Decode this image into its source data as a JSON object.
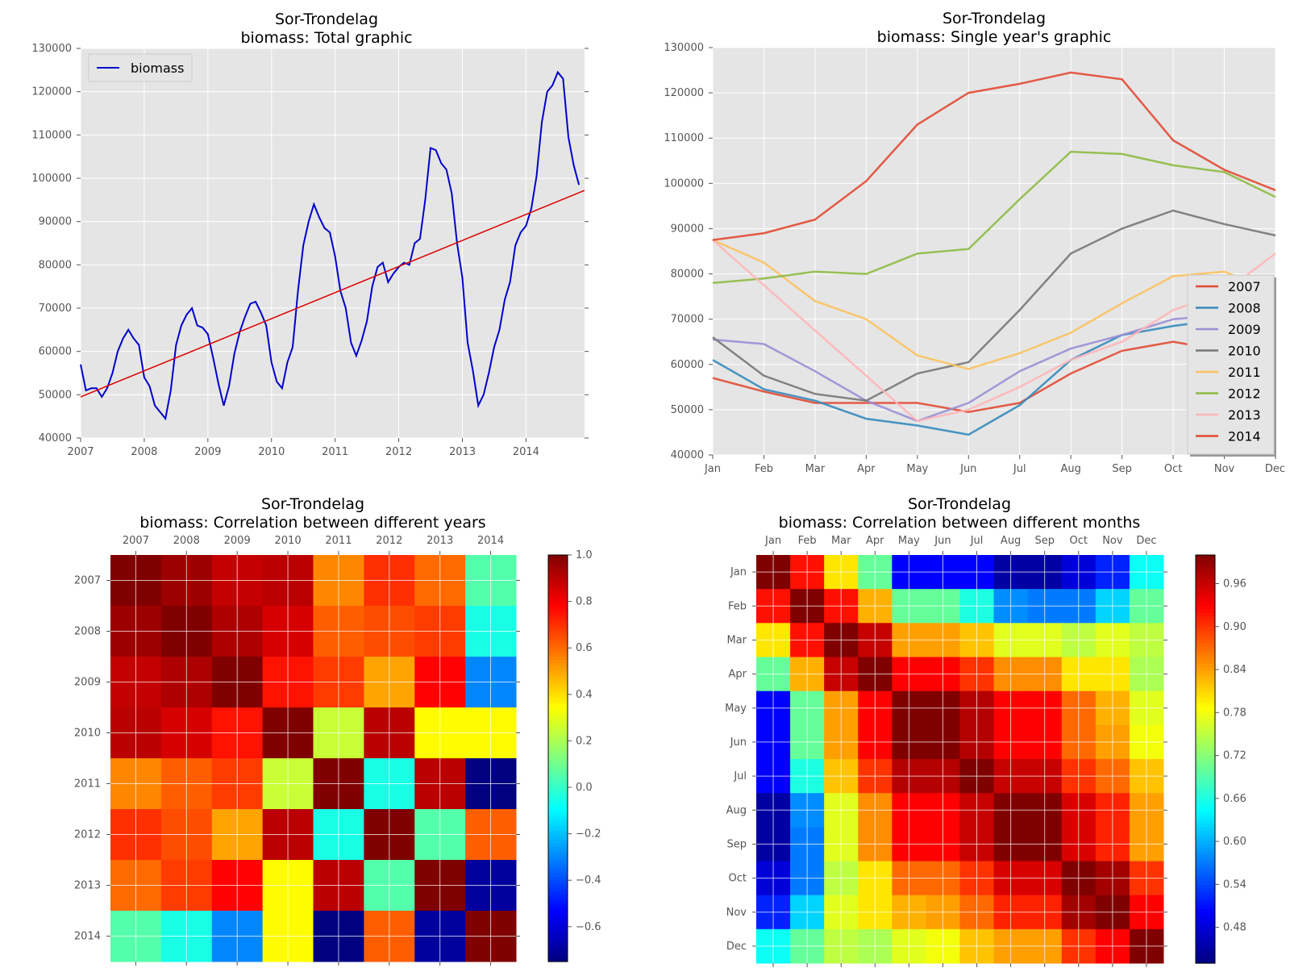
{
  "chart_data": [
    {
      "type": "line",
      "title": "Sor-Trondelag",
      "subtitle": "biomass: Total graphic",
      "xlabel": "",
      "ylabel": "",
      "xlim": [
        2007.0,
        2014.92
      ],
      "ylim": [
        40000,
        130000
      ],
      "x_ticks": [
        "2007",
        "2008",
        "2009",
        "2010",
        "2011",
        "2012",
        "2013",
        "2014"
      ],
      "y_ticks": [
        "40000",
        "50000",
        "60000",
        "70000",
        "80000",
        "90000",
        "100000",
        "110000",
        "120000",
        "130000"
      ],
      "grid": true,
      "legend": {
        "position": "top-left",
        "entries": [
          "biomass"
        ]
      },
      "series": [
        {
          "name": "biomass",
          "color": "#0000cc",
          "x_start": 2007,
          "x_step": 0.08333,
          "values": [
            57000,
            51000,
            51500,
            51500,
            49500,
            51500,
            55000,
            60000,
            63000,
            65000,
            63000,
            61500,
            54000,
            52000,
            47500,
            46000,
            44500,
            51000,
            61500,
            66000,
            68500,
            70000,
            66000,
            65500,
            64000,
            58500,
            52500,
            47500,
            52000,
            59500,
            64500,
            68000,
            71000,
            71500,
            69000,
            66000,
            57500,
            53000,
            51500,
            57500,
            61000,
            74000,
            84500,
            90000,
            94000,
            91000,
            88500,
            87500,
            82000,
            74000,
            70000,
            62000,
            59000,
            62500,
            67000,
            75000,
            79500,
            80500,
            76000,
            78000,
            79500,
            80500,
            80000,
            85000,
            86000,
            95000,
            107000,
            106500,
            103500,
            102000,
            96500,
            85000,
            77000,
            62000,
            55500,
            47500,
            50000,
            55000,
            61000,
            65000,
            72000,
            76000,
            84500,
            87500,
            89000,
            93000,
            100500,
            113000,
            120000,
            121500,
            124500,
            123000,
            109500,
            103000,
            98500
          ]
        },
        {
          "name": "",
          "color": "#dd0000",
          "type": "trend",
          "x": [
            2007.0,
            2014.92
          ],
          "values": [
            49500,
            97200
          ]
        }
      ]
    },
    {
      "type": "line",
      "title": "Sor-Trondelag",
      "subtitle": "biomass: Single year's graphic",
      "xlabel": "",
      "ylabel": "",
      "categories": [
        "Jan",
        "Feb",
        "Mar",
        "Apr",
        "May",
        "Jun",
        "Jul",
        "Aug",
        "Sep",
        "Oct",
        "Nov",
        "Dec"
      ],
      "y_ticks": [
        "40000",
        "50000",
        "60000",
        "70000",
        "80000",
        "90000",
        "100000",
        "110000",
        "120000",
        "130000"
      ],
      "ylim": [
        40000,
        130000
      ],
      "grid": true,
      "legend": {
        "position": "lower-right"
      },
      "series": [
        {
          "name": "2007",
          "color": "#e24a33",
          "values": [
            57000,
            54000,
            51500,
            51500,
            51500,
            49500,
            51500,
            58000,
            63000,
            65000,
            63000,
            61500
          ]
        },
        {
          "name": "2008",
          "color": "#348abd",
          "values": [
            61000,
            54500,
            52000,
            48000,
            46500,
            44500,
            51000,
            61000,
            66500,
            68500,
            70000,
            66500
          ]
        },
        {
          "name": "2009",
          "color": "#988ed5",
          "values": [
            65500,
            64500,
            58500,
            52000,
            47500,
            51500,
            58500,
            63500,
            66500,
            70000,
            71000,
            69000
          ]
        },
        {
          "name": "2010",
          "color": "#777777",
          "values": [
            66000,
            57500,
            53500,
            52000,
            58000,
            60500,
            72000,
            84500,
            90000,
            94000,
            91000,
            88500
          ]
        },
        {
          "name": "2011",
          "color": "#fbc15e",
          "values": [
            87500,
            82500,
            74000,
            70000,
            62000,
            59000,
            62500,
            67000,
            73500,
            79500,
            80500,
            76000
          ]
        },
        {
          "name": "2012",
          "color": "#8eba42",
          "values": [
            78000,
            79000,
            80500,
            80000,
            84500,
            85500,
            96500,
            107000,
            106500,
            104000,
            102500,
            97000
          ]
        },
        {
          "name": "2013",
          "color": "#ffb5b8",
          "values": [
            87500,
            77500,
            67500,
            57500,
            47500,
            50000,
            55000,
            61000,
            65000,
            72000,
            76000,
            84500
          ]
        },
        {
          "name": "2014",
          "color": "#e24a33",
          "values": [
            87500,
            89000,
            92000,
            100500,
            113000,
            120000,
            122000,
            124500,
            123000,
            109500,
            103000,
            98500
          ]
        }
      ]
    },
    {
      "type": "heatmap",
      "title": "Sor-Trondelag",
      "subtitle": "biomass: Correlation between different years",
      "x_labels": [
        "2007",
        "2008",
        "2009",
        "2010",
        "2011",
        "2012",
        "2013",
        "2014"
      ],
      "y_labels": [
        "2007",
        "2008",
        "2009",
        "2010",
        "2011",
        "2012",
        "2013",
        "2014"
      ],
      "color_range": [
        -0.75,
        1.0
      ],
      "colorbar_ticks": [
        "1.0",
        "0.8",
        "0.6",
        "0.4",
        "0.2",
        "0.0",
        "−0.2",
        "−0.4",
        "−0.6"
      ],
      "colorbar_values": [
        1.0,
        0.8,
        0.6,
        0.4,
        0.2,
        0.0,
        -0.2,
        -0.4,
        -0.6
      ],
      "values": [
        [
          1.0,
          0.95,
          0.88,
          0.9,
          0.55,
          0.7,
          0.6,
          0.05
        ],
        [
          0.95,
          1.0,
          0.92,
          0.85,
          0.62,
          0.65,
          0.68,
          -0.05
        ],
        [
          0.88,
          0.92,
          1.0,
          0.75,
          0.68,
          0.5,
          0.78,
          -0.3
        ],
        [
          0.9,
          0.85,
          0.75,
          1.0,
          0.25,
          0.9,
          0.35,
          0.35
        ],
        [
          0.55,
          0.62,
          0.68,
          0.25,
          1.0,
          -0.05,
          0.9,
          -0.75
        ],
        [
          0.7,
          0.65,
          0.5,
          0.9,
          -0.05,
          1.0,
          0.05,
          0.62
        ],
        [
          0.6,
          0.68,
          0.78,
          0.35,
          0.9,
          0.05,
          1.0,
          -0.7
        ],
        [
          0.05,
          -0.05,
          -0.3,
          0.35,
          -0.75,
          0.62,
          -0.7,
          1.0
        ]
      ]
    },
    {
      "type": "heatmap",
      "title": "Sor-Trondelag",
      "subtitle": "biomass: Correlation between different months",
      "x_labels": [
        "Jan",
        "Feb",
        "Mar",
        "Apr",
        "May",
        "Jun",
        "Jul",
        "Aug",
        "Sep",
        "Oct",
        "Nov",
        "Dec"
      ],
      "y_labels": [
        "Jan",
        "Feb",
        "Mar",
        "Apr",
        "May",
        "Jun",
        "Jul",
        "Aug",
        "Sep",
        "Oct",
        "Nov",
        "Dec"
      ],
      "color_range": [
        0.43,
        1.0
      ],
      "colorbar_ticks": [
        "0.96",
        "0.90",
        "0.84",
        "0.78",
        "0.72",
        "0.66",
        "0.60",
        "0.54",
        "0.48"
      ],
      "colorbar_values": [
        0.96,
        0.9,
        0.84,
        0.78,
        0.72,
        0.66,
        0.6,
        0.54,
        0.48
      ],
      "values": [
        [
          1.0,
          0.92,
          0.8,
          0.7,
          0.5,
          0.5,
          0.5,
          0.45,
          0.45,
          0.48,
          0.52,
          0.65
        ],
        [
          0.92,
          1.0,
          0.92,
          0.83,
          0.7,
          0.7,
          0.66,
          0.58,
          0.57,
          0.57,
          0.62,
          0.7
        ],
        [
          0.8,
          0.92,
          1.0,
          0.96,
          0.84,
          0.84,
          0.82,
          0.77,
          0.77,
          0.75,
          0.77,
          0.75
        ],
        [
          0.7,
          0.83,
          0.96,
          1.0,
          0.93,
          0.93,
          0.9,
          0.85,
          0.85,
          0.8,
          0.8,
          0.74
        ],
        [
          0.5,
          0.7,
          0.84,
          0.93,
          1.0,
          1.0,
          0.97,
          0.93,
          0.93,
          0.87,
          0.83,
          0.77
        ],
        [
          0.5,
          0.7,
          0.84,
          0.93,
          1.0,
          1.0,
          0.97,
          0.93,
          0.93,
          0.87,
          0.84,
          0.78
        ],
        [
          0.5,
          0.66,
          0.82,
          0.9,
          0.97,
          0.97,
          1.0,
          0.96,
          0.96,
          0.9,
          0.87,
          0.82
        ],
        [
          0.45,
          0.58,
          0.77,
          0.85,
          0.93,
          0.93,
          0.96,
          1.0,
          1.0,
          0.95,
          0.91,
          0.84
        ],
        [
          0.45,
          0.57,
          0.77,
          0.85,
          0.93,
          0.93,
          0.96,
          1.0,
          1.0,
          0.95,
          0.91,
          0.84
        ],
        [
          0.48,
          0.57,
          0.75,
          0.8,
          0.87,
          0.87,
          0.9,
          0.95,
          0.95,
          1.0,
          0.98,
          0.9
        ],
        [
          0.52,
          0.62,
          0.77,
          0.8,
          0.83,
          0.84,
          0.87,
          0.91,
          0.91,
          0.98,
          1.0,
          0.93
        ],
        [
          0.65,
          0.7,
          0.75,
          0.74,
          0.77,
          0.78,
          0.82,
          0.84,
          0.84,
          0.9,
          0.93,
          1.0
        ]
      ]
    }
  ]
}
